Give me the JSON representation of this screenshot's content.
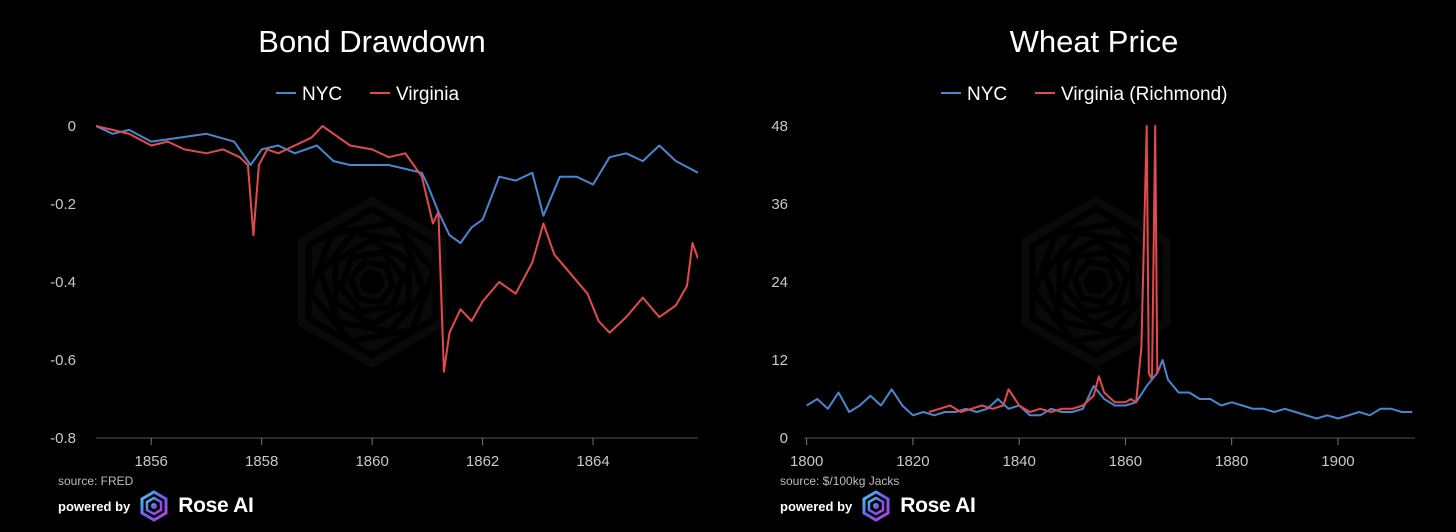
{
  "chart_data": [
    {
      "type": "line",
      "title": "Bond Drawdown",
      "xlabel": "",
      "ylabel": "",
      "xlim": [
        1855.0,
        1865.9
      ],
      "ylim": [
        -0.8,
        0.0
      ],
      "x_ticks": [
        "1856",
        "1858",
        "1860",
        "1862",
        "1864"
      ],
      "y_ticks": [
        "0",
        "-0.2",
        "-0.4",
        "-0.6",
        "-0.8"
      ],
      "grid": false,
      "legend": "top-center",
      "source": "source: FRED",
      "series": [
        {
          "name": "NYC",
          "color": "#4a86d0",
          "x": [
            1855.0,
            1855.3,
            1855.6,
            1856.0,
            1856.5,
            1857.0,
            1857.5,
            1857.8,
            1858.0,
            1858.3,
            1858.6,
            1859.0,
            1859.3,
            1859.6,
            1860.0,
            1860.3,
            1860.6,
            1860.9,
            1861.0,
            1861.2,
            1861.4,
            1861.6,
            1861.8,
            1862.0,
            1862.3,
            1862.6,
            1862.9,
            1863.1,
            1863.4,
            1863.7,
            1864.0,
            1864.3,
            1864.6,
            1864.9,
            1865.2,
            1865.5,
            1865.9
          ],
          "y": [
            0.0,
            -0.02,
            -0.01,
            -0.04,
            -0.03,
            -0.02,
            -0.04,
            -0.1,
            -0.06,
            -0.05,
            -0.07,
            -0.05,
            -0.09,
            -0.1,
            -0.1,
            -0.1,
            -0.11,
            -0.12,
            -0.15,
            -0.22,
            -0.28,
            -0.3,
            -0.26,
            -0.24,
            -0.13,
            -0.14,
            -0.12,
            -0.23,
            -0.13,
            -0.13,
            -0.15,
            -0.08,
            -0.07,
            -0.09,
            -0.05,
            -0.09,
            -0.12
          ]
        },
        {
          "name": "Virginia",
          "color": "#e24a4f",
          "x": [
            1855.0,
            1855.3,
            1855.6,
            1856.0,
            1856.3,
            1856.6,
            1857.0,
            1857.3,
            1857.6,
            1857.75,
            1857.85,
            1857.95,
            1858.1,
            1858.3,
            1858.6,
            1858.9,
            1859.1,
            1859.3,
            1859.6,
            1860.0,
            1860.3,
            1860.6,
            1860.9,
            1861.0,
            1861.1,
            1861.2,
            1861.3,
            1861.4,
            1861.6,
            1861.8,
            1862.0,
            1862.3,
            1862.6,
            1862.9,
            1863.1,
            1863.3,
            1863.6,
            1863.9,
            1864.1,
            1864.3,
            1864.6,
            1864.9,
            1865.2,
            1865.5,
            1865.7,
            1865.8,
            1865.9
          ],
          "y": [
            0.0,
            -0.01,
            -0.02,
            -0.05,
            -0.04,
            -0.06,
            -0.07,
            -0.06,
            -0.08,
            -0.1,
            -0.28,
            -0.1,
            -0.06,
            -0.07,
            -0.05,
            -0.03,
            0.0,
            -0.02,
            -0.05,
            -0.06,
            -0.08,
            -0.07,
            -0.13,
            -0.19,
            -0.25,
            -0.22,
            -0.63,
            -0.53,
            -0.47,
            -0.5,
            -0.45,
            -0.4,
            -0.43,
            -0.35,
            -0.25,
            -0.33,
            -0.38,
            -0.43,
            -0.5,
            -0.53,
            -0.49,
            -0.44,
            -0.49,
            -0.46,
            -0.41,
            -0.3,
            -0.34
          ]
        }
      ]
    },
    {
      "type": "line",
      "title": "Wheat Price",
      "xlabel": "",
      "ylabel": "",
      "xlim": [
        1799.5,
        1914.5
      ],
      "ylim": [
        0,
        48
      ],
      "x_ticks": [
        "1800",
        "1820",
        "1840",
        "1860",
        "1880",
        "1900"
      ],
      "y_ticks": [
        "0",
        "12",
        "24",
        "36",
        "48"
      ],
      "grid": false,
      "legend": "top-center",
      "source": "source: $/100kg Jacks",
      "series": [
        {
          "name": "NYC",
          "color": "#4a86d0",
          "x": [
            1800,
            1802,
            1804,
            1806,
            1808,
            1810,
            1812,
            1814,
            1816,
            1818,
            1820,
            1822,
            1824,
            1826,
            1828,
            1830,
            1832,
            1834,
            1836,
            1838,
            1840,
            1842,
            1844,
            1846,
            1848,
            1850,
            1852,
            1854,
            1856,
            1858,
            1860,
            1862,
            1864,
            1866,
            1867,
            1868,
            1870,
            1872,
            1874,
            1876,
            1878,
            1880,
            1882,
            1884,
            1886,
            1888,
            1890,
            1892,
            1894,
            1896,
            1898,
            1900,
            1902,
            1904,
            1906,
            1908,
            1910,
            1912,
            1914
          ],
          "y": [
            5,
            6,
            4.5,
            7,
            4,
            5,
            6.5,
            5,
            7.5,
            5,
            3.5,
            4,
            3.5,
            4,
            4,
            4.5,
            4,
            4.5,
            6,
            4.5,
            5,
            3.5,
            3.5,
            4.5,
            4,
            4,
            4.5,
            8,
            6,
            5,
            5,
            5.5,
            8,
            10,
            12,
            9,
            7,
            7,
            6,
            6,
            5,
            5.5,
            5,
            4.5,
            4.5,
            4,
            4.5,
            4,
            3.5,
            3,
            3.5,
            3,
            3.5,
            4,
            3.5,
            4.5,
            4.5,
            4,
            4
          ]
        },
        {
          "name": "Virginia (Richmond)",
          "color": "#e24a4f",
          "x": [
            1823,
            1825,
            1827,
            1829,
            1831,
            1833,
            1835,
            1837,
            1838,
            1840,
            1842,
            1844,
            1846,
            1848,
            1850,
            1852,
            1854,
            1855,
            1856,
            1858,
            1860,
            1861,
            1862,
            1863,
            1864,
            1864.4,
            1865,
            1865.6,
            1866,
            1866.5
          ],
          "y": [
            4,
            4.5,
            5,
            4,
            4.5,
            5,
            4.5,
            5,
            7.5,
            5,
            4,
            4.5,
            4,
            4.5,
            4.5,
            5,
            6.5,
            9.5,
            7,
            5.5,
            5.5,
            6,
            5.5,
            14,
            48,
            10,
            9,
            48,
            10,
            11
          ]
        }
      ]
    }
  ],
  "footer": {
    "powered_by": "powered by",
    "brand": "Rose AI"
  }
}
